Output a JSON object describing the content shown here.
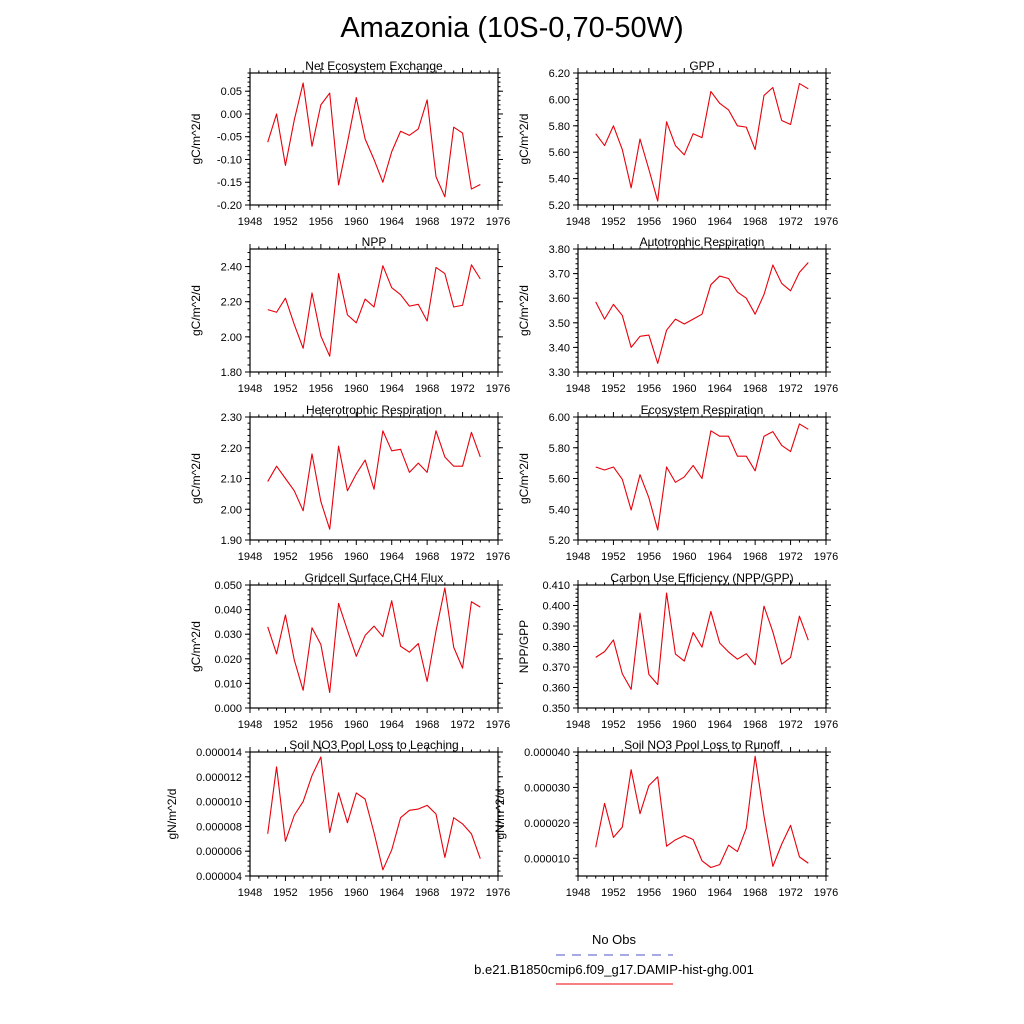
{
  "title": "Amazonia (10S-0,70-50W)",
  "colors": {
    "model": "#e8000b",
    "obs": "#4b55c8",
    "axis": "#000000"
  },
  "legend": {
    "obs_label": "No Obs",
    "model_label": "b.e21.B1850cmip6.f09_g17.DAMIP-hist-ghg.001"
  },
  "chart_data": [
    {
      "type": "line",
      "title": "Net Ecosystem Exchange",
      "ylabel": "gC/m^2/d",
      "xlim": [
        1948,
        1976
      ],
      "ylim": [
        -0.2,
        0.09
      ],
      "yticks": [
        -0.2,
        -0.15,
        -0.1,
        -0.05,
        0.0,
        0.05
      ],
      "ytick_labels": [
        "-0.20",
        "-0.15",
        "-0.10",
        "-0.05",
        "0.00",
        "0.05"
      ],
      "xticks": [
        1948,
        1952,
        1956,
        1960,
        1964,
        1968,
        1972,
        1976
      ],
      "series": [
        {
          "x": [
            1950,
            1951,
            1952,
            1953,
            1954,
            1955,
            1956,
            1957,
            1958,
            1959,
            1960,
            1961,
            1962,
            1963,
            1964,
            1965,
            1966,
            1967,
            1968,
            1969,
            1970,
            1971,
            1972,
            1973,
            1974
          ],
          "values": [
            -0.062,
            0.0,
            -0.113,
            -0.013,
            0.068,
            -0.071,
            0.02,
            0.046,
            -0.156,
            -0.063,
            0.036,
            -0.055,
            -0.1,
            -0.15,
            -0.083,
            -0.038,
            -0.047,
            -0.033,
            0.031,
            -0.138,
            -0.182,
            -0.029,
            -0.042,
            -0.165,
            -0.155
          ]
        }
      ]
    },
    {
      "type": "line",
      "title": "GPP",
      "ylabel": "gC/m^2/d",
      "xlim": [
        1948,
        1976
      ],
      "ylim": [
        5.2,
        6.2
      ],
      "yticks": [
        5.2,
        5.4,
        5.6,
        5.8,
        6.0,
        6.2
      ],
      "ytick_labels": [
        "5.20",
        "5.40",
        "5.60",
        "5.80",
        "6.00",
        "6.20"
      ],
      "xticks": [
        1948,
        1952,
        1956,
        1960,
        1964,
        1968,
        1972,
        1976
      ],
      "series": [
        {
          "x": [
            1950,
            1951,
            1952,
            1953,
            1954,
            1955,
            1956,
            1957,
            1958,
            1959,
            1960,
            1961,
            1962,
            1963,
            1964,
            1965,
            1966,
            1967,
            1968,
            1969,
            1970,
            1971,
            1972,
            1973,
            1974
          ],
          "values": [
            5.74,
            5.65,
            5.8,
            5.62,
            5.33,
            5.7,
            5.47,
            5.23,
            5.83,
            5.65,
            5.58,
            5.74,
            5.71,
            6.06,
            5.97,
            5.92,
            5.8,
            5.79,
            5.62,
            6.03,
            6.09,
            5.84,
            5.81,
            6.12,
            6.08
          ]
        }
      ]
    },
    {
      "type": "line",
      "title": "NPP",
      "ylabel": "gC/m^2/d",
      "xlim": [
        1948,
        1976
      ],
      "ylim": [
        1.8,
        2.5
      ],
      "yticks": [
        1.8,
        2.0,
        2.2,
        2.4
      ],
      "ytick_labels": [
        "1.80",
        "2.00",
        "2.20",
        "2.40"
      ],
      "xticks": [
        1948,
        1952,
        1956,
        1960,
        1964,
        1968,
        1972,
        1976
      ],
      "series": [
        {
          "x": [
            1950,
            1951,
            1952,
            1953,
            1954,
            1955,
            1956,
            1957,
            1958,
            1959,
            1960,
            1961,
            1962,
            1963,
            1964,
            1965,
            1966,
            1967,
            1968,
            1969,
            1970,
            1971,
            1972,
            1973,
            1974
          ],
          "values": [
            2.155,
            2.14,
            2.22,
            2.07,
            1.935,
            2.25,
            2.005,
            1.89,
            2.36,
            2.125,
            2.08,
            2.215,
            2.17,
            2.405,
            2.28,
            2.24,
            2.175,
            2.185,
            2.09,
            2.395,
            2.36,
            2.17,
            2.18,
            2.41,
            2.33
          ]
        }
      ]
    },
    {
      "type": "line",
      "title": "Autotrophic Respiration",
      "ylabel": "gC/m^2/d",
      "xlim": [
        1948,
        1976
      ],
      "ylim": [
        3.3,
        3.8
      ],
      "yticks": [
        3.3,
        3.4,
        3.5,
        3.6,
        3.7,
        3.8
      ],
      "ytick_labels": [
        "3.30",
        "3.40",
        "3.50",
        "3.60",
        "3.70",
        "3.80"
      ],
      "xticks": [
        1948,
        1952,
        1956,
        1960,
        1964,
        1968,
        1972,
        1976
      ],
      "series": [
        {
          "x": [
            1950,
            1951,
            1952,
            1953,
            1954,
            1955,
            1956,
            1957,
            1958,
            1959,
            1960,
            1961,
            1962,
            1963,
            1964,
            1965,
            1966,
            1967,
            1968,
            1969,
            1970,
            1971,
            1972,
            1973,
            1974
          ],
          "values": [
            3.585,
            3.515,
            3.575,
            3.53,
            3.4,
            3.445,
            3.45,
            3.335,
            3.47,
            3.515,
            3.495,
            3.515,
            3.535,
            3.655,
            3.69,
            3.68,
            3.625,
            3.6,
            3.535,
            3.615,
            3.735,
            3.66,
            3.63,
            3.705,
            3.745
          ]
        }
      ]
    },
    {
      "type": "line",
      "title": "Heterotrophic Respiration",
      "ylabel": "gC/m^2/d",
      "xlim": [
        1948,
        1976
      ],
      "ylim": [
        1.9,
        2.3
      ],
      "yticks": [
        1.9,
        2.0,
        2.1,
        2.2,
        2.3
      ],
      "ytick_labels": [
        "1.90",
        "2.00",
        "2.10",
        "2.20",
        "2.30"
      ],
      "xticks": [
        1948,
        1952,
        1956,
        1960,
        1964,
        1968,
        1972,
        1976
      ],
      "series": [
        {
          "x": [
            1950,
            1951,
            1952,
            1953,
            1954,
            1955,
            1956,
            1957,
            1958,
            1959,
            1960,
            1961,
            1962,
            1963,
            1964,
            1965,
            1966,
            1967,
            1968,
            1969,
            1970,
            1971,
            1972,
            1973,
            1974
          ],
          "values": [
            2.09,
            2.14,
            2.1,
            2.06,
            1.995,
            2.18,
            2.025,
            1.935,
            2.205,
            2.06,
            2.115,
            2.16,
            2.065,
            2.255,
            2.19,
            2.195,
            2.12,
            2.15,
            2.12,
            2.255,
            2.17,
            2.14,
            2.14,
            2.25,
            2.17
          ]
        }
      ]
    },
    {
      "type": "line",
      "title": "Ecosystem Respiration",
      "ylabel": "gC/m^2/d",
      "xlim": [
        1948,
        1976
      ],
      "ylim": [
        5.2,
        6.0
      ],
      "yticks": [
        5.2,
        5.4,
        5.6,
        5.8,
        6.0
      ],
      "ytick_labels": [
        "5.20",
        "5.40",
        "5.60",
        "5.80",
        "6.00"
      ],
      "xticks": [
        1948,
        1952,
        1956,
        1960,
        1964,
        1968,
        1972,
        1976
      ],
      "series": [
        {
          "x": [
            1950,
            1951,
            1952,
            1953,
            1954,
            1955,
            1956,
            1957,
            1958,
            1959,
            1960,
            1961,
            1962,
            1963,
            1964,
            1965,
            1966,
            1967,
            1968,
            1969,
            1970,
            1971,
            1972,
            1973,
            1974
          ],
          "values": [
            5.675,
            5.655,
            5.675,
            5.595,
            5.395,
            5.625,
            5.475,
            5.265,
            5.675,
            5.575,
            5.61,
            5.685,
            5.6,
            5.91,
            5.875,
            5.875,
            5.745,
            5.745,
            5.65,
            5.875,
            5.905,
            5.815,
            5.775,
            5.955,
            5.92
          ]
        }
      ]
    },
    {
      "type": "line",
      "title": "Gridcell Surface CH4 Flux",
      "ylabel": "gC/m^2/d",
      "xlim": [
        1948,
        1976
      ],
      "ylim": [
        0.0,
        0.05
      ],
      "yticks": [
        0.0,
        0.01,
        0.02,
        0.03,
        0.04,
        0.05
      ],
      "ytick_labels": [
        "0.000",
        "0.010",
        "0.020",
        "0.030",
        "0.040",
        "0.050"
      ],
      "xticks": [
        1948,
        1952,
        1956,
        1960,
        1964,
        1968,
        1972,
        1976
      ],
      "series": [
        {
          "x": [
            1950,
            1951,
            1952,
            1953,
            1954,
            1955,
            1956,
            1957,
            1958,
            1959,
            1960,
            1961,
            1962,
            1963,
            1964,
            1965,
            1966,
            1967,
            1968,
            1969,
            1970,
            1971,
            1972,
            1973,
            1974
          ],
          "values": [
            0.033,
            0.022,
            0.0378,
            0.0195,
            0.0072,
            0.0326,
            0.0258,
            0.0063,
            0.0425,
            0.0316,
            0.021,
            0.0295,
            0.0333,
            0.029,
            0.0436,
            0.0251,
            0.0227,
            0.0262,
            0.0108,
            0.0313,
            0.0488,
            0.0247,
            0.0162,
            0.0432,
            0.041
          ]
        }
      ]
    },
    {
      "type": "line",
      "title": "Carbon Use Efficiency (NPP/GPP)",
      "ylabel": "NPP/GPP",
      "xlim": [
        1948,
        1976
      ],
      "ylim": [
        0.35,
        0.41
      ],
      "yticks": [
        0.35,
        0.36,
        0.37,
        0.38,
        0.39,
        0.4,
        0.41
      ],
      "ytick_labels": [
        "0.350",
        "0.360",
        "0.370",
        "0.380",
        "0.390",
        "0.400",
        "0.410"
      ],
      "xticks": [
        1948,
        1952,
        1956,
        1960,
        1964,
        1968,
        1972,
        1976
      ],
      "series": [
        {
          "x": [
            1950,
            1951,
            1952,
            1953,
            1954,
            1955,
            1956,
            1957,
            1958,
            1959,
            1960,
            1961,
            1962,
            1963,
            1964,
            1965,
            1966,
            1967,
            1968,
            1969,
            1970,
            1971,
            1972,
            1973,
            1974
          ],
          "values": [
            0.3747,
            0.3775,
            0.3832,
            0.3667,
            0.3591,
            0.3963,
            0.3664,
            0.3614,
            0.4061,
            0.3763,
            0.3729,
            0.3868,
            0.3797,
            0.3971,
            0.3817,
            0.3773,
            0.3738,
            0.3765,
            0.3711,
            0.3997,
            0.3871,
            0.3714,
            0.3746,
            0.3948,
            0.3831
          ]
        }
      ]
    },
    {
      "type": "line",
      "title": "Soil NO3 Pool Loss to Leaching",
      "ylabel": "gN/m^2/d",
      "xlim": [
        1948,
        1976
      ],
      "ylim": [
        4e-06,
        1.4e-05
      ],
      "yticks": [
        4e-06,
        6e-06,
        8e-06,
        1e-05,
        1.2e-05,
        1.4e-05
      ],
      "ytick_labels": [
        "0.000004",
        "0.000006",
        "0.000008",
        "0.000010",
        "0.000012",
        "0.000014"
      ],
      "xticks": [
        1948,
        1952,
        1956,
        1960,
        1964,
        1968,
        1972,
        1976
      ],
      "series": [
        {
          "x": [
            1950,
            1951,
            1952,
            1953,
            1954,
            1955,
            1956,
            1957,
            1958,
            1959,
            1960,
            1961,
            1962,
            1963,
            1964,
            1965,
            1966,
            1967,
            1968,
            1969,
            1970,
            1971,
            1972,
            1973,
            1974
          ],
          "values": [
            7.4e-06,
            1.28e-05,
            6.8e-06,
            8.9e-06,
            1e-05,
            1.21e-05,
            1.36e-05,
            7.5e-06,
            1.07e-05,
            8.3e-06,
            1.07e-05,
            1.02e-05,
            7.5e-06,
            4.5e-06,
            6.1e-06,
            8.7e-06,
            9.3e-06,
            9.4e-06,
            9.7e-06,
            9e-06,
            5.5e-06,
            8.7e-06,
            8.2e-06,
            7.4e-06,
            5.4e-06
          ]
        }
      ]
    },
    {
      "type": "line",
      "title": "Soil NO3 Pool Loss to Runoff",
      "ylabel": "gN/m^2/d",
      "xlim": [
        1948,
        1976
      ],
      "ylim": [
        5e-06,
        4e-05
      ],
      "yticks": [
        1e-05,
        2e-05,
        3e-05,
        4e-05
      ],
      "ytick_labels": [
        "0.000010",
        "0.000020",
        "0.000030",
        "0.000040"
      ],
      "xticks": [
        1948,
        1952,
        1956,
        1960,
        1964,
        1968,
        1972,
        1976
      ],
      "series": [
        {
          "x": [
            1950,
            1951,
            1952,
            1953,
            1954,
            1955,
            1956,
            1957,
            1958,
            1959,
            1960,
            1961,
            1962,
            1963,
            1964,
            1965,
            1966,
            1967,
            1968,
            1969,
            1970,
            1971,
            1972,
            1973,
            1974
          ],
          "values": [
            1.31e-05,
            2.55e-05,
            1.59e-05,
            1.88e-05,
            3.5e-05,
            2.26e-05,
            3.05e-05,
            3.3e-05,
            1.34e-05,
            1.52e-05,
            1.64e-05,
            1.53e-05,
            9.3e-06,
            7.4e-06,
            8.2e-06,
            1.37e-05,
            1.19e-05,
            1.85e-05,
            3.88e-05,
            2.19e-05,
            7.7e-06,
            1.4e-05,
            1.93e-05,
            1.04e-05,
            8.6e-06
          ]
        }
      ]
    }
  ]
}
